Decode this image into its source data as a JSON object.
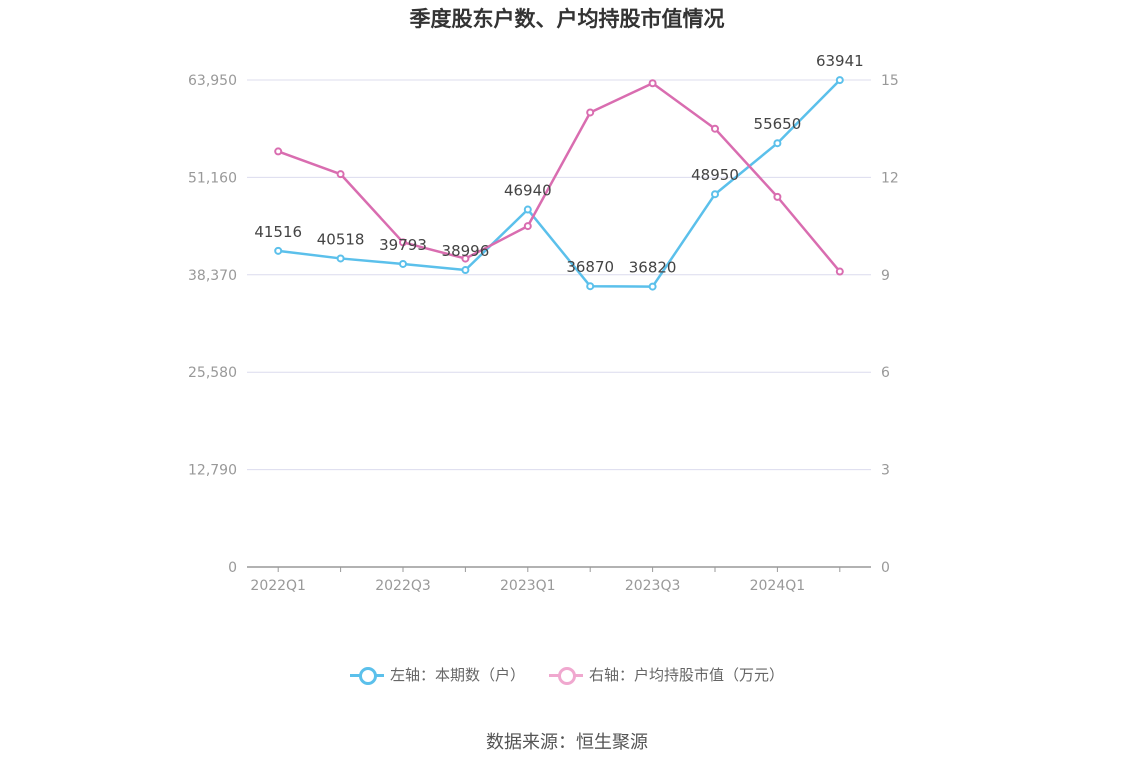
{
  "colors": {
    "left_series": "#5bc0eb",
    "right_series": "#d96db0",
    "legend_right": "#f0a8cf",
    "grid": "#dcdcee",
    "axis": "#999999"
  },
  "chart_data": {
    "type": "line",
    "title": "季度股东户数、户均持股市值情况",
    "categories": [
      "2022Q1",
      "2022Q2",
      "2022Q3",
      "2022Q4",
      "2023Q1",
      "2023Q2",
      "2023Q3",
      "2023Q4",
      "2024Q1",
      "2024Q2"
    ],
    "x_tick_labels": [
      "2022Q1",
      "",
      "2022Q3",
      "",
      "2023Q1",
      "",
      "2023Q3",
      "",
      "2024Q1",
      ""
    ],
    "left_axis": {
      "ylim": [
        0,
        63950
      ],
      "tick_labels": [
        "0",
        "12,790",
        "25,580",
        "38,370",
        "51,160",
        "63,950"
      ]
    },
    "right_axis": {
      "ylim": [
        0,
        15
      ],
      "tick_labels": [
        "0",
        "3",
        "6",
        "9",
        "12",
        "15"
      ]
    },
    "grid": true,
    "legend_position": "bottom",
    "series": [
      {
        "name": "左轴：本期数（户）",
        "axis": "left",
        "values": [
          41516,
          40518,
          39793,
          38996,
          46940,
          36870,
          36820,
          48950,
          55650,
          63941
        ],
        "labels": [
          "41516",
          "40518",
          "39793",
          "38996",
          "46940",
          "36870",
          "36820",
          "48950",
          "55650",
          "63941"
        ]
      },
      {
        "name": "右轴：户均持股市值（万元）",
        "axis": "right",
        "values": [
          12.8,
          12.1,
          10.0,
          9.5,
          10.5,
          14.0,
          14.9,
          13.5,
          11.4,
          9.1
        ]
      }
    ]
  },
  "source_text": "数据来源：恒生聚源"
}
